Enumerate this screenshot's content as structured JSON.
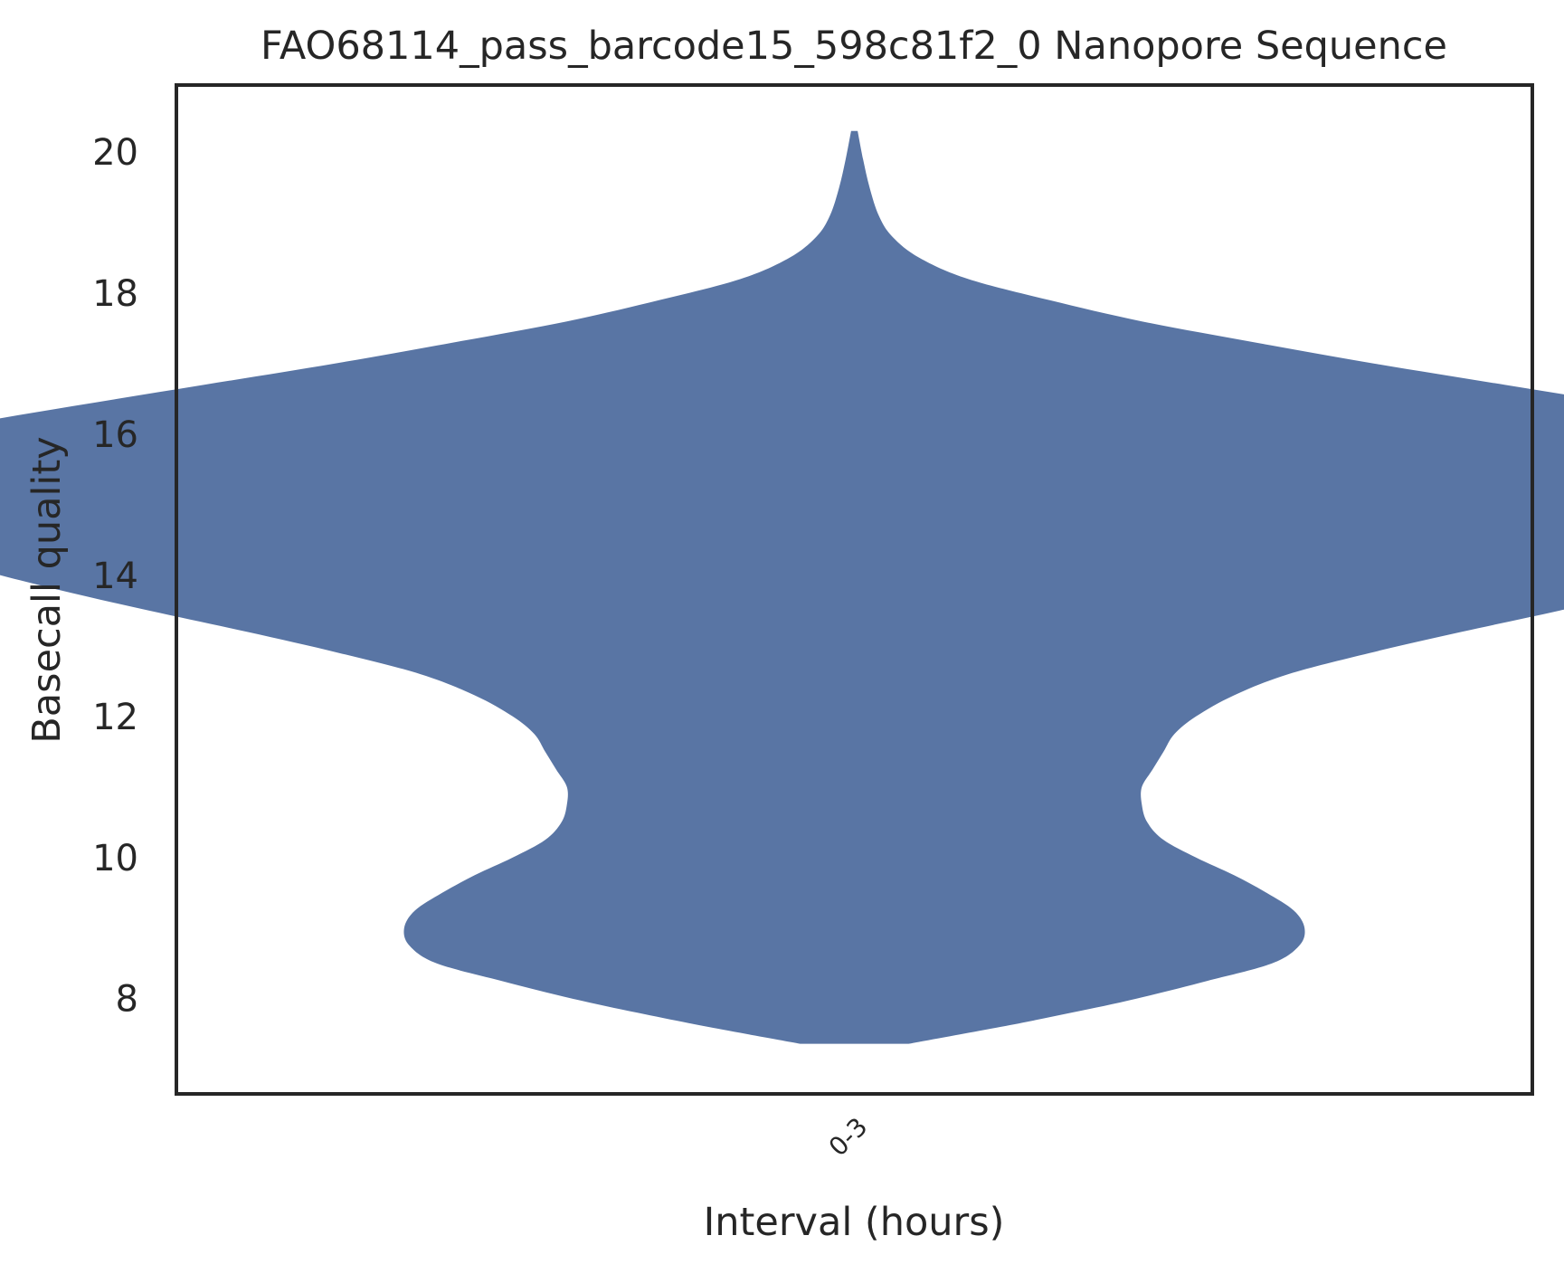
{
  "chart_data": {
    "type": "violin",
    "title": "FAO68114_pass_barcode15_598c81f2_0 Nanopore Sequence",
    "xlabel": "Interval (hours)",
    "ylabel": "Basecall quality",
    "categories": [
      "0-3"
    ],
    "yticks": [
      8,
      10,
      12,
      14,
      16,
      18,
      20
    ],
    "ylim": [
      6.65,
      20.95
    ],
    "color": "#5975a4",
    "grid": false,
    "violins": [
      {
        "category": "0-3",
        "min": 7.36,
        "max": 20.3,
        "density_profile": [
          {
            "y": 7.36,
            "w": 0.1
          },
          {
            "y": 7.6,
            "w": 0.27
          },
          {
            "y": 7.8,
            "w": 0.4
          },
          {
            "y": 8.0,
            "w": 0.52
          },
          {
            "y": 8.25,
            "w": 0.65
          },
          {
            "y": 8.5,
            "w": 0.77
          },
          {
            "y": 8.75,
            "w": 0.82
          },
          {
            "y": 9.0,
            "w": 0.83
          },
          {
            "y": 9.25,
            "w": 0.81
          },
          {
            "y": 9.5,
            "w": 0.76
          },
          {
            "y": 9.75,
            "w": 0.7
          },
          {
            "y": 10.0,
            "w": 0.63
          },
          {
            "y": 10.25,
            "w": 0.57
          },
          {
            "y": 10.5,
            "w": 0.54
          },
          {
            "y": 10.75,
            "w": 0.53
          },
          {
            "y": 11.0,
            "w": 0.53
          },
          {
            "y": 11.25,
            "w": 0.55
          },
          {
            "y": 11.5,
            "w": 0.57
          },
          {
            "y": 11.75,
            "w": 0.59
          },
          {
            "y": 12.0,
            "w": 0.63
          },
          {
            "y": 12.3,
            "w": 0.7
          },
          {
            "y": 12.6,
            "w": 0.8
          },
          {
            "y": 12.9,
            "w": 0.95
          },
          {
            "y": 13.2,
            "w": 1.12
          },
          {
            "y": 13.5,
            "w": 1.3
          },
          {
            "y": 13.8,
            "w": 1.47
          },
          {
            "y": 14.1,
            "w": 1.62
          },
          {
            "y": 14.4,
            "w": 1.73
          },
          {
            "y": 14.7,
            "w": 1.82
          },
          {
            "y": 15.0,
            "w": 1.89
          },
          {
            "y": 15.2,
            "w": 1.94
          },
          {
            "y": 15.45,
            "w": 1.96
          },
          {
            "y": 15.65,
            "w": 1.93
          },
          {
            "y": 15.85,
            "w": 1.84
          },
          {
            "y": 16.1,
            "w": 1.67
          },
          {
            "y": 16.4,
            "w": 1.44
          },
          {
            "y": 16.7,
            "w": 1.2
          },
          {
            "y": 17.0,
            "w": 0.96
          },
          {
            "y": 17.3,
            "w": 0.74
          },
          {
            "y": 17.6,
            "w": 0.53
          },
          {
            "y": 17.9,
            "w": 0.36
          },
          {
            "y": 18.2,
            "w": 0.21
          },
          {
            "y": 18.5,
            "w": 0.12
          },
          {
            "y": 18.8,
            "w": 0.07
          },
          {
            "y": 19.1,
            "w": 0.045
          },
          {
            "y": 19.5,
            "w": 0.028
          },
          {
            "y": 19.9,
            "w": 0.016
          },
          {
            "y": 20.3,
            "w": 0.006
          }
        ]
      }
    ]
  }
}
